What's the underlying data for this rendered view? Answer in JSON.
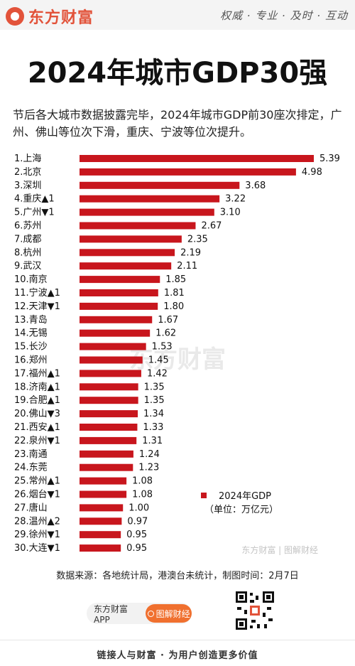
{
  "header": {
    "brand": "东方财富",
    "slogan": "权威 · 专业 · 及时 · 互动"
  },
  "title": {
    "main": "2024年城市GDP",
    "highlight": "30强"
  },
  "intro": "节后各大城市数据披露完毕，2024年城市GDP前30座次排定，广州、佛山等位次下滑，重庆、宁波等位次提升。",
  "chart_data": {
    "type": "bar",
    "orientation": "horizontal",
    "categories": [
      "1.上海",
      "2.北京",
      "3.深圳",
      "4.重庆▲1",
      "5.广州▼1",
      "6.苏州",
      "7.成都",
      "8.杭州",
      "9.武汉",
      "10.南京",
      "11.宁波▲1",
      "12.天津▼1",
      "13.青岛",
      "14.无锡",
      "15.长沙",
      "16.郑州",
      "17.福州▲1",
      "18.济南▲1",
      "19.合肥▲1",
      "20.佛山▼3",
      "21.西安▲1",
      "22.泉州▼1",
      "23.南通",
      "24.东莞",
      "25.常州▲1",
      "26.烟台▼1",
      "27.唐山",
      "28.温州▲2",
      "29.徐州▼1",
      "30.大连▼1"
    ],
    "series": [
      {
        "name": "2024年GDP",
        "values": [
          5.39,
          4.98,
          3.68,
          3.22,
          3.1,
          2.67,
          2.35,
          2.19,
          2.11,
          1.85,
          1.81,
          1.8,
          1.67,
          1.62,
          1.53,
          1.45,
          1.42,
          1.35,
          1.35,
          1.34,
          1.33,
          1.31,
          1.24,
          1.23,
          1.08,
          1.08,
          1.0,
          0.97,
          0.95,
          0.95
        ],
        "labels": [
          "5.39",
          "4.98",
          "3.68",
          "3.22",
          "3.10",
          "2.67",
          "2.35",
          "2.19",
          "2.11",
          "1.85",
          "1.81",
          "1.80",
          "1.67",
          "1.62",
          "1.53",
          "1.45",
          "1.42",
          "1.35",
          "1.35",
          "1.34",
          "1.33",
          "1.31",
          "1.24",
          "1.23",
          "1.08",
          "1.08",
          "1.00",
          "0.97",
          "0.95",
          "0.95"
        ]
      }
    ],
    "legend": {
      "series_name": "2024年GDP",
      "unit": "（单位：万亿元）",
      "position": "bottom-right"
    },
    "grid": false,
    "colors": {
      "bar": "#c8161d"
    }
  },
  "watermark": {
    "center": "东方财富",
    "corner": "东方财富 | 图解财经"
  },
  "source": "数据来源：各地统计局，港澳台未统计，制图时间：2月7日",
  "app": {
    "name": "东方财富APP",
    "button": "图解财经"
  },
  "footer": "链接人与财富 · 为用户创造更多价值"
}
